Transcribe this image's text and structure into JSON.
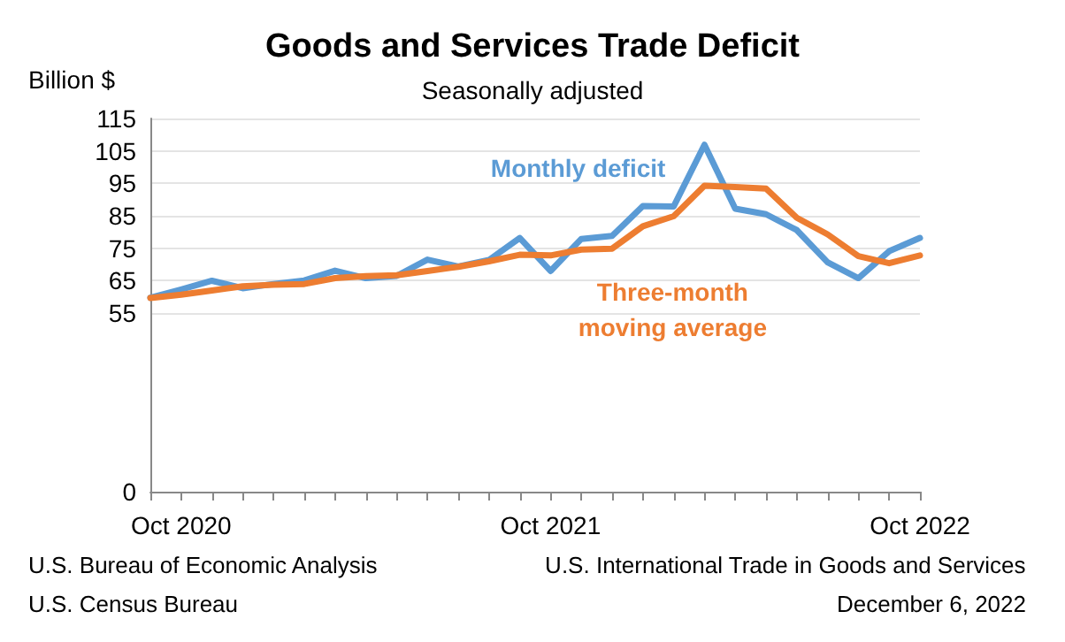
{
  "chart_data": {
    "type": "line",
    "title": "Goods and Services Trade Deficit",
    "subtitle": "Seasonally adjusted",
    "ylabel": "Billion $",
    "categories": [
      null,
      "Oct 2020",
      null,
      null,
      null,
      null,
      null,
      null,
      null,
      null,
      null,
      null,
      null,
      "Oct 2021",
      null,
      null,
      null,
      null,
      null,
      null,
      null,
      null,
      null,
      null,
      null,
      "Oct 2022"
    ],
    "series": [
      {
        "name": "Monthly deficit",
        "color": "#5b9bd5",
        "values": [
          59.8,
          62.3,
          65.0,
          62.7,
          64.0,
          65.1,
          68.1,
          65.8,
          66.5,
          71.5,
          69.4,
          71.4,
          78.2,
          68.0,
          77.9,
          78.8,
          88.0,
          87.9,
          106.9,
          87.2,
          85.5,
          80.6,
          70.7,
          65.8,
          74.1,
          78.2
        ]
      },
      {
        "name": "Three-month moving average",
        "color": "#ed7d31",
        "values": [
          59.7,
          60.7,
          62.0,
          63.3,
          63.8,
          64.0,
          65.8,
          66.4,
          66.7,
          68.0,
          69.3,
          71.0,
          73.0,
          72.8,
          74.6,
          74.9,
          81.8,
          84.9,
          94.3,
          93.9,
          93.4,
          84.4,
          79.3,
          72.6,
          70.4,
          72.8
        ]
      }
    ],
    "ylim": [
      0,
      115
    ],
    "yticks": [
      0,
      55,
      65,
      75,
      85,
      95,
      105,
      115
    ],
    "grid": "y",
    "legend": false,
    "marker": "none",
    "line_style": "solid",
    "annotations": [
      "U.S. Bureau of Economic Analysis",
      "U.S. Census Bureau",
      "U.S. International Trade in Goods and Services",
      "December 6, 2022"
    ]
  }
}
